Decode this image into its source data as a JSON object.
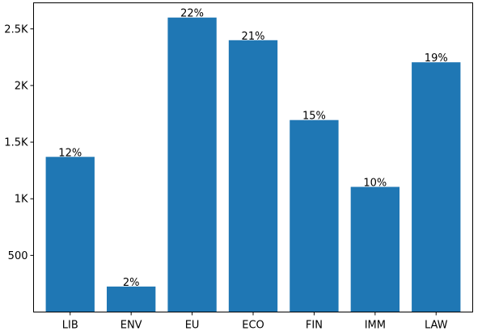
{
  "chart_data": {
    "type": "bar",
    "title": "",
    "xlabel": "",
    "ylabel": "",
    "categories": [
      "LIB",
      "ENV",
      "EU",
      "ECO",
      "FIN",
      "IMM",
      "LAW"
    ],
    "values": [
      1370,
      225,
      2600,
      2400,
      1695,
      1105,
      2205
    ],
    "data_labels": [
      "12%",
      "2%",
      "22%",
      "21%",
      "15%",
      "10%",
      "19%"
    ],
    "ylim": [
      0,
      2730
    ],
    "yticks": [
      500,
      1000,
      1500,
      2000,
      2500
    ],
    "ytick_labels": [
      "500",
      "1K",
      "1.5K",
      "2K",
      "2.5K"
    ],
    "grid": false,
    "colors": {
      "bar": "#1f77b4",
      "axis": "#000000",
      "background": "#ffffff"
    }
  }
}
